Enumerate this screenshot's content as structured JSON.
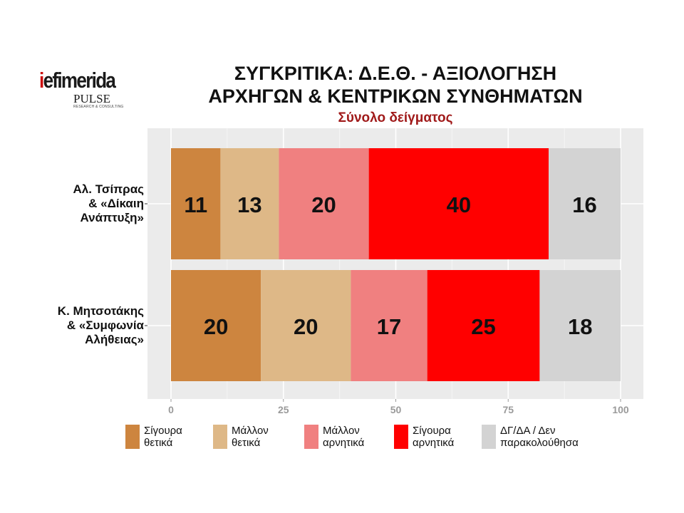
{
  "logo": {
    "brand_first": "i",
    "brand_rest": "efimerida",
    "partner": "PULSE",
    "partner_tagline": "RESEARCH & CONSULTING"
  },
  "title_line1": "ΣΥΓΚΡΙΤΙΚΑ:  Δ.Ε.Θ. - ΑΞΙΟΛΟΓΗΣΗ",
  "title_line2": "ΑΡΧΗΓΩΝ & ΚΕΝΤΡΙΚΩΝ ΣΥΝΘΗΜΑΤΩΝ",
  "subtitle": "Σύνολο δείγματος",
  "chart_data": {
    "type": "bar",
    "orientation": "horizontal",
    "stacked": true,
    "categories": [
      "Αλ. Τσίπρας\n& «Δίκαιη\nΑνάπτυξη»",
      "Κ. Μητσοτάκης\n& «Συμφωνία\nΑλήθειας»"
    ],
    "series": [
      {
        "name": "Σίγουρα\nθετικά",
        "color": "#cd853f",
        "values": [
          11,
          20
        ]
      },
      {
        "name": "Μάλλον\nθετικά",
        "color": "#deb887",
        "values": [
          13,
          20
        ]
      },
      {
        "name": "Μάλλον\nαρνητικά",
        "color": "#f08080",
        "values": [
          20,
          17
        ]
      },
      {
        "name": "Σίγουρα\nαρνητικά",
        "color": "#ff0000",
        "values": [
          40,
          25
        ]
      },
      {
        "name": "ΔΓ/ΔΑ / Δεν\nπαρακολούθησα",
        "color": "#d3d3d3",
        "values": [
          16,
          18
        ]
      }
    ],
    "xlim": [
      0,
      100
    ],
    "xticks": [
      0,
      25,
      50,
      75,
      100
    ],
    "grid": true,
    "legend_position": "bottom",
    "panel_color": "#ebebeb"
  }
}
